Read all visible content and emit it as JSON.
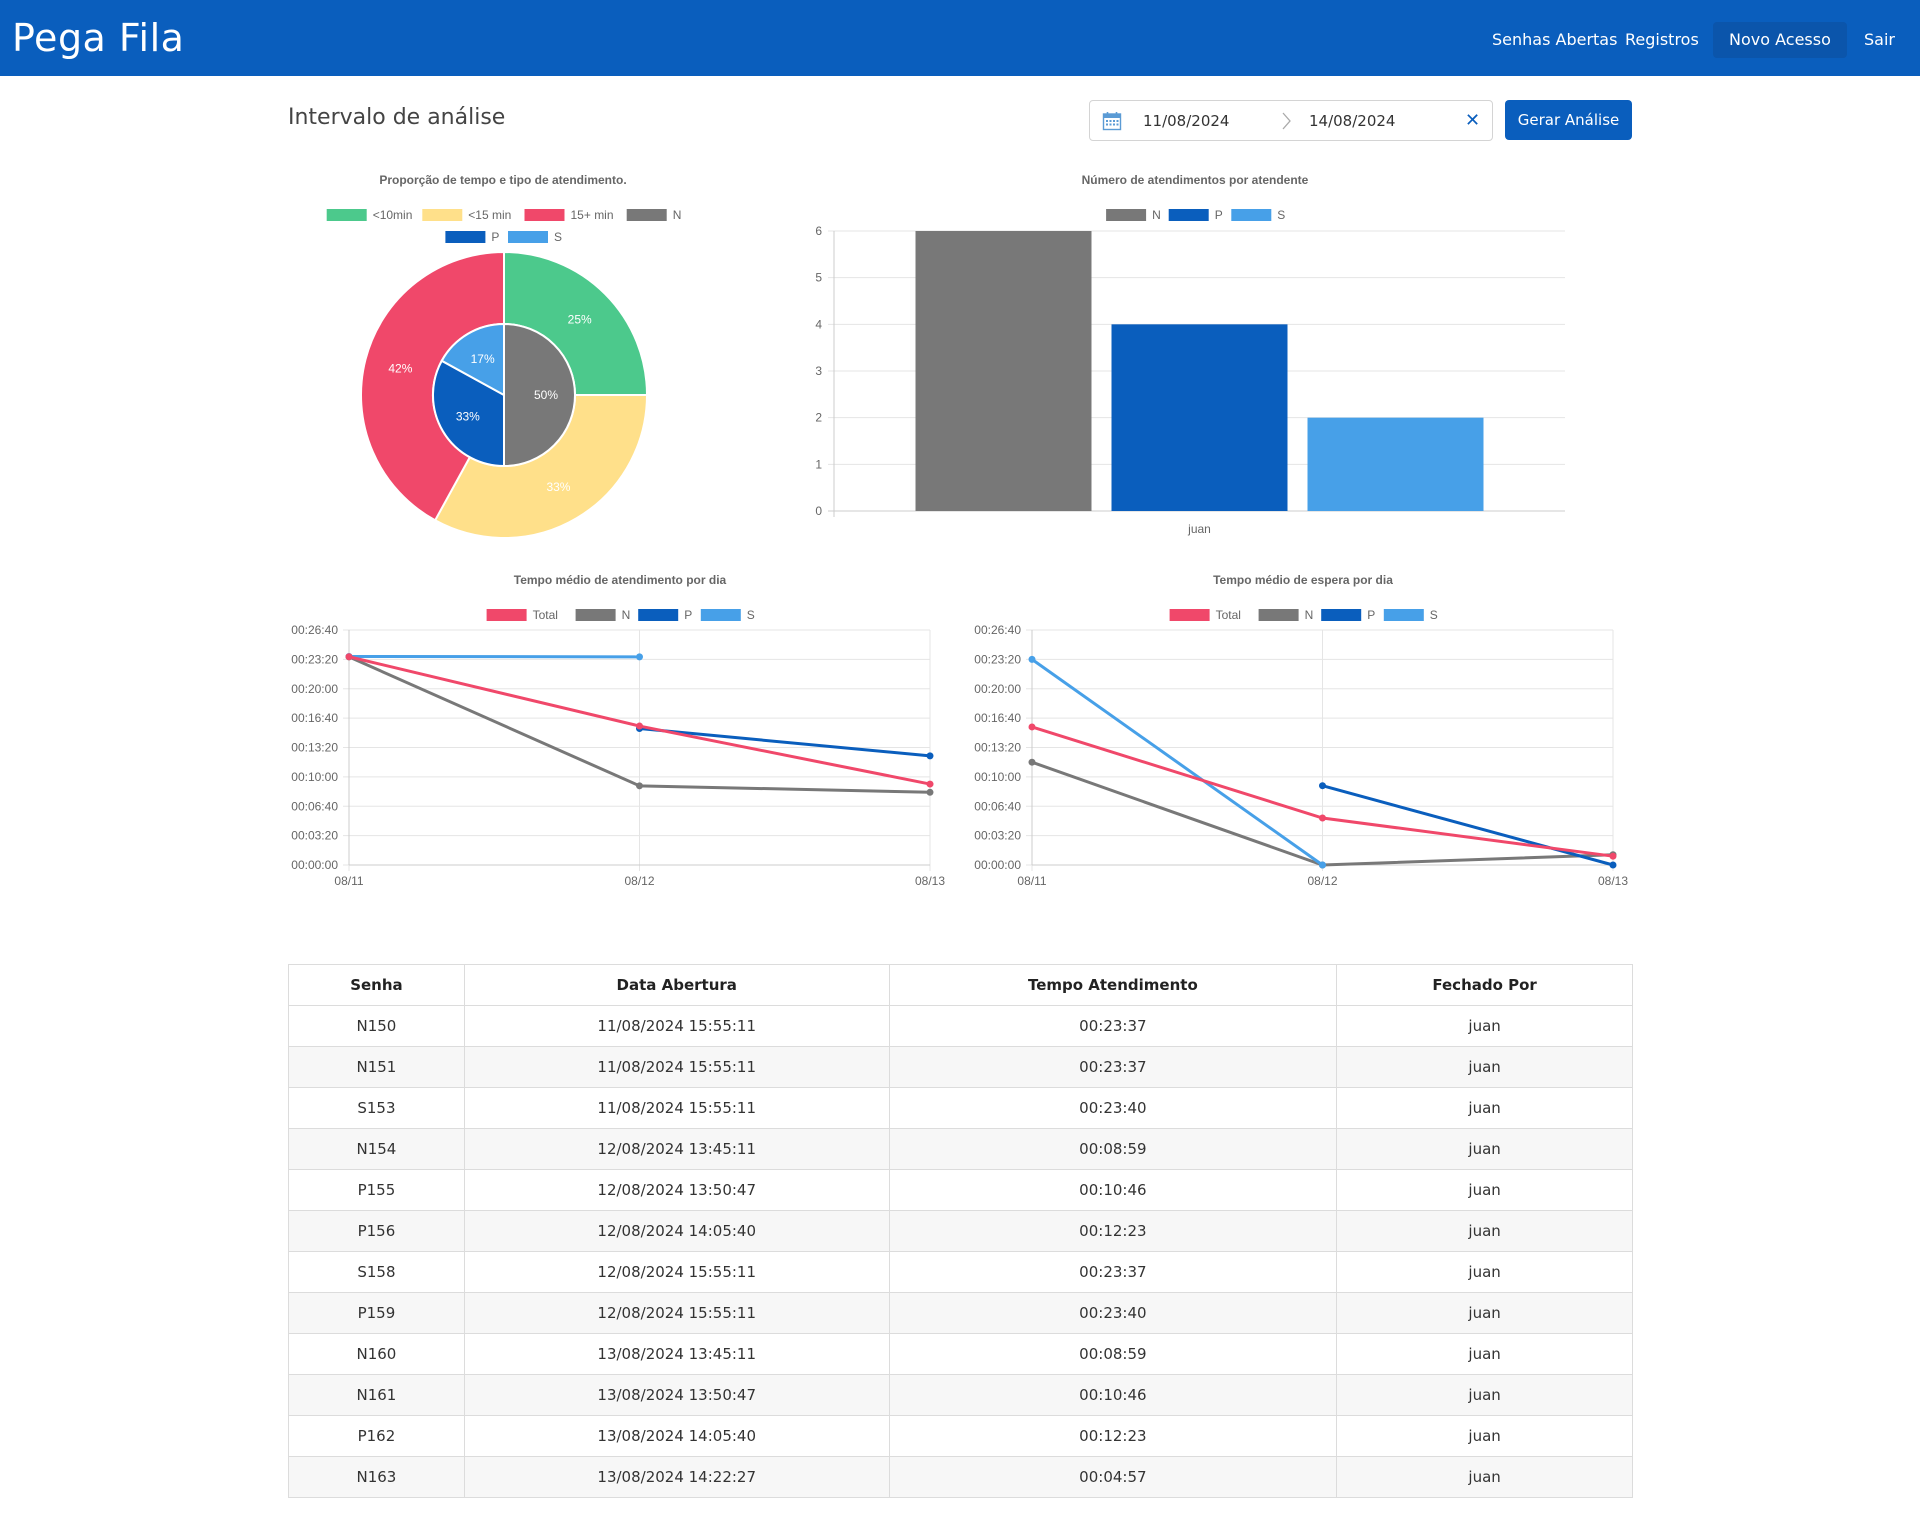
{
  "navbar": {
    "brand": "Pega Fila",
    "links": [
      {
        "label": "Senhas Abertas"
      },
      {
        "label": "Registros"
      },
      {
        "label": "Novo Acesso"
      },
      {
        "label": "Sair"
      }
    ]
  },
  "toolbar": {
    "heading": "Intervalo de análise",
    "start_date": "11/08/2024",
    "end_date": "14/08/2024",
    "clear_icon": "✕",
    "generate_label": "Gerar Análise"
  },
  "colors": {
    "brand": "#0a5ebd",
    "lt10": "#4cc98c",
    "lt15": "#ffe08a",
    "gt15": "#f0486a",
    "N": "#787878",
    "P": "#0a5ebd",
    "S": "#47a0e8",
    "Total": "#f0486a"
  },
  "chart_data": [
    {
      "type": "pie",
      "title": "Proporção de tempo e tipo de atendimento.",
      "legend": [
        "<10min",
        "<15 min",
        "15+ min",
        "N",
        "P",
        "S"
      ],
      "outer_ring": [
        {
          "label": "<10min",
          "value": 25,
          "text": "25%"
        },
        {
          "label": "<15 min",
          "value": 33,
          "text": "33%"
        },
        {
          "label": "15+ min",
          "value": 42,
          "text": "42%"
        }
      ],
      "inner_ring": [
        {
          "label": "N",
          "value": 50,
          "text": "50%"
        },
        {
          "label": "P",
          "value": 33,
          "text": "33%"
        },
        {
          "label": "S",
          "value": 17,
          "text": "17%"
        }
      ]
    },
    {
      "type": "bar",
      "title": "Número de atendimentos por atendente",
      "categories": [
        "juan"
      ],
      "series": [
        {
          "name": "N",
          "values": [
            6
          ]
        },
        {
          "name": "P",
          "values": [
            4
          ]
        },
        {
          "name": "S",
          "values": [
            2
          ]
        }
      ],
      "ylim": [
        0,
        6
      ],
      "yticks": [
        "0",
        "1",
        "2",
        "3",
        "4",
        "5",
        "6"
      ]
    },
    {
      "type": "line",
      "title": "Tempo médio de atendimento por dia",
      "x": [
        "08/11",
        "08/12",
        "08/13"
      ],
      "yticks": [
        "00:00:00",
        "00:03:20",
        "00:06:40",
        "00:10:00",
        "00:13:20",
        "00:16:40",
        "00:20:00",
        "00:23:20",
        "00:26:40"
      ],
      "ylim": [
        "00:00:00",
        "00:26:40"
      ],
      "series": [
        {
          "name": "Total",
          "values": [
            "00:23:38",
            "00:15:46",
            "00:09:11"
          ]
        },
        {
          "name": "N",
          "values": [
            "00:23:37",
            "00:08:59",
            "00:08:15"
          ]
        },
        {
          "name": "P",
          "values": [
            null,
            "00:15:29",
            "00:12:23"
          ]
        },
        {
          "name": "S",
          "values": [
            "00:23:40",
            "00:23:37",
            null
          ]
        }
      ]
    },
    {
      "type": "line",
      "title": "Tempo médio de espera por dia",
      "x": [
        "08/11",
        "08/12",
        "08/13"
      ],
      "yticks": [
        "00:00:00",
        "00:03:20",
        "00:06:40",
        "00:10:00",
        "00:13:20",
        "00:16:40",
        "00:20:00",
        "00:23:20",
        "00:26:40"
      ],
      "ylim": [
        "00:00:00",
        "00:26:40"
      ],
      "series": [
        {
          "name": "Total",
          "values": [
            "00:15:40",
            "00:05:20",
            "00:01:00"
          ]
        },
        {
          "name": "N",
          "values": [
            "00:11:40",
            "00:00:00",
            "00:01:10"
          ]
        },
        {
          "name": "P",
          "values": [
            null,
            "00:09:00",
            "00:00:00"
          ]
        },
        {
          "name": "S",
          "values": [
            "00:23:20",
            "00:00:00",
            null
          ]
        }
      ]
    }
  ],
  "table": {
    "headers": [
      "Senha",
      "Data Abertura",
      "Tempo Atendimento",
      "Fechado Por"
    ],
    "rows": [
      [
        "N150",
        "11/08/2024 15:55:11",
        "00:23:37",
        "juan"
      ],
      [
        "N151",
        "11/08/2024 15:55:11",
        "00:23:37",
        "juan"
      ],
      [
        "S153",
        "11/08/2024 15:55:11",
        "00:23:40",
        "juan"
      ],
      [
        "N154",
        "12/08/2024 13:45:11",
        "00:08:59",
        "juan"
      ],
      [
        "P155",
        "12/08/2024 13:50:47",
        "00:10:46",
        "juan"
      ],
      [
        "P156",
        "12/08/2024 14:05:40",
        "00:12:23",
        "juan"
      ],
      [
        "S158",
        "12/08/2024 15:55:11",
        "00:23:37",
        "juan"
      ],
      [
        "P159",
        "12/08/2024 15:55:11",
        "00:23:40",
        "juan"
      ],
      [
        "N160",
        "13/08/2024 13:45:11",
        "00:08:59",
        "juan"
      ],
      [
        "N161",
        "13/08/2024 13:50:47",
        "00:10:46",
        "juan"
      ],
      [
        "P162",
        "13/08/2024 14:05:40",
        "00:12:23",
        "juan"
      ],
      [
        "N163",
        "13/08/2024 14:22:27",
        "00:04:57",
        "juan"
      ]
    ]
  }
}
